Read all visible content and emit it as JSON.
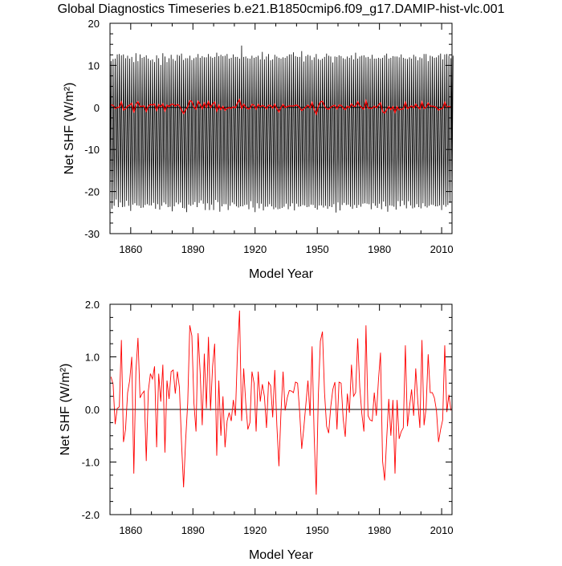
{
  "title": "Global Diagnostics Timeseries b.e21.B1850cmip6.f09_g17.DAMIP-hist-vlc.001",
  "chart_data": [
    {
      "type": "line",
      "xlabel": "Model Year",
      "ylabel": "Net SHF (W/m²)",
      "xlim": [
        1850,
        2015
      ],
      "ylim": [
        -30,
        20
      ],
      "xticks": [
        "1860",
        "1890",
        "1920",
        "1950",
        "1980",
        "2010"
      ],
      "yticks": [
        "20",
        "10",
        "0",
        "-10",
        "-20",
        "-30"
      ],
      "zero_line": true,
      "series": [
        {
          "color": "#000000",
          "style": "monthly",
          "annual_min": [
            -23.9,
            -24.1,
            -23.4,
            -21.9,
            -23.7,
            -22.6,
            -23.7,
            -23.6,
            -22.2,
            -23.4,
            -24.6,
            -23.1,
            -22.8,
            -23.3,
            -23.4,
            -23.9,
            -23.8,
            -23.2,
            -23.0,
            -23.3,
            -23.3,
            -22.7,
            -24.1,
            -23.0,
            -24.3,
            -23.4,
            -22.6,
            -23.0,
            -23.7,
            -23.6,
            -24.7,
            -23.5,
            -22.6,
            -23.0,
            -22.6,
            -23.9,
            -24.0,
            -24.9,
            -23.1,
            -23.4,
            -23.1,
            -22.5,
            -23.7,
            -22.7,
            -22.1,
            -22.9,
            -24.4,
            -22.8,
            -24.4,
            -23.1,
            -24.4,
            -22.0,
            -22.5,
            -24.8,
            -23.5,
            -23.0,
            -23.0,
            -24.4,
            -23.4,
            -22.6,
            -23.0,
            -23.5,
            -23.8,
            -23.5,
            -23.5,
            -23.2,
            -23.1,
            -24.2,
            -22.3,
            -23.8,
            -24.9,
            -22.8,
            -24.0,
            -22.9,
            -24.5,
            -23.6,
            -23.6,
            -23.0,
            -23.5,
            -24.2,
            -23.8,
            -24.2,
            -24.1,
            -23.9,
            -23.6,
            -22.9,
            -24.2,
            -23.5,
            -22.8,
            -24.5,
            -22.9,
            -23.6,
            -23.5,
            -23.2,
            -23.3,
            -23.7,
            -23.6,
            -23.1,
            -23.2,
            -23.9,
            -24.3,
            -23.3,
            -23.3,
            -23.8,
            -23.4,
            -24.1,
            -23.5,
            -23.7,
            -23.0,
            -25.0,
            -22.6,
            -24.5,
            -23.2,
            -22.7,
            -23.2,
            -23.1,
            -23.6,
            -24.1,
            -23.2,
            -23.9,
            -23.2,
            -23.6,
            -22.9,
            -22.8,
            -22.9,
            -23.0,
            -24.2,
            -22.8,
            -23.4,
            -23.9,
            -22.9,
            -24.2,
            -22.4,
            -23.5,
            -24.8,
            -23.3,
            -23.4,
            -23.6,
            -24.3,
            -22.3,
            -23.5,
            -22.2,
            -23.2,
            -24.0,
            -22.3,
            -23.3,
            -24.0,
            -23.8,
            -23.0,
            -23.7,
            -24.0,
            -22.8,
            -23.5,
            -23.8,
            -23.4,
            -23.1,
            -23.2,
            -23.5,
            -23.5,
            -23.3,
            -24.4,
            -23.2,
            -23.6,
            -23.2,
            -22.7,
            -23.1
          ],
          "annual_max": [
            11.0,
            11.5,
            11.6,
            12.6,
            12.7,
            12.4,
            12.6,
            11.7,
            12.3,
            11.6,
            12.0,
            10.8,
            12.9,
            11.0,
            12.6,
            11.8,
            12.0,
            12.4,
            11.6,
            11.2,
            11.4,
            10.8,
            12.4,
            11.7,
            10.1,
            12.9,
            12.1,
            10.8,
            11.7,
            12.5,
            11.5,
            11.1,
            12.5,
            12.3,
            12.8,
            11.3,
            11.7,
            11.7,
            12.3,
            11.3,
            11.7,
            11.9,
            12.7,
            11.8,
            12.2,
            11.9,
            11.9,
            12.7,
            12.1,
            11.8,
            12.0,
            13.0,
            12.2,
            12.5,
            12.2,
            12.3,
            12.7,
            11.6,
            11.8,
            12.6,
            12.0,
            12.0,
            11.6,
            14.7,
            12.0,
            12.1,
            11.7,
            11.6,
            12.3,
            11.8,
            12.0,
            12.3,
            11.4,
            13.2,
            11.4,
            12.1,
            12.7,
            11.2,
            11.4,
            12.5,
            12.1,
            11.8,
            11.6,
            11.9,
            11.8,
            12.2,
            12.6,
            12.6,
            13.1,
            12.2,
            12.0,
            12.0,
            13.4,
            10.9,
            12.2,
            12.5,
            12.3,
            11.3,
            11.9,
            12.7,
            11.5,
            11.3,
            11.6,
            12.0,
            12.8,
            12.3,
            12.1,
            10.7,
            12.1,
            12.0,
            12.4,
            12.2,
            11.7,
            11.5,
            12.1,
            11.8,
            12.4,
            11.4,
            13.0,
            11.6,
            12.1,
            12.3,
            12.4,
            11.9,
            12.0,
            11.6,
            12.5,
            11.6,
            11.6,
            11.8,
            11.6,
            11.8,
            12.4,
            12.8,
            11.6,
            11.8,
            12.2,
            12.1,
            12.1,
            11.9,
            12.6,
            11.8,
            11.6,
            11.5,
            11.9,
            11.6,
            12.5,
            12.1,
            11.2,
            11.9,
            11.7,
            12.7,
            12.7,
            11.0,
            12.3,
            12.1,
            11.8,
            11.9,
            12.4,
            12.8,
            11.4,
            12.6,
            12.7,
            12.3,
            11.7,
            12.3
          ]
        },
        {
          "color": "#ff0000",
          "style": "annual",
          "x": [
            1850,
            1851,
            1852,
            1853,
            1854,
            1855,
            1856,
            1857,
            1858,
            1859,
            1860,
            1861,
            1862,
            1863,
            1864,
            1865,
            1866,
            1867,
            1868,
            1869,
            1870,
            1871,
            1872,
            1873,
            1874,
            1875,
            1876,
            1877,
            1878,
            1879,
            1880,
            1881,
            1882,
            1883,
            1884,
            1885,
            1886,
            1887,
            1888,
            1889,
            1890,
            1891,
            1892,
            1893,
            1894,
            1895,
            1896,
            1897,
            1898,
            1899,
            1900,
            1901,
            1902,
            1903,
            1904,
            1905,
            1906,
            1907,
            1908,
            1909,
            1910,
            1911,
            1912,
            1913,
            1914,
            1915,
            1916,
            1917,
            1918,
            1919,
            1920,
            1921,
            1922,
            1923,
            1924,
            1925,
            1926,
            1927,
            1928,
            1929,
            1930,
            1931,
            1932,
            1933,
            1934,
            1935,
            1936,
            1937,
            1938,
            1939,
            1940,
            1941,
            1942,
            1943,
            1944,
            1945,
            1946,
            1947,
            1948,
            1949,
            1950,
            1951,
            1952,
            1953,
            1954,
            1955,
            1956,
            1957,
            1958,
            1959,
            1960,
            1961,
            1962,
            1963,
            1964,
            1965,
            1966,
            1967,
            1968,
            1969,
            1970,
            1971,
            1972,
            1973,
            1974,
            1975,
            1976,
            1977,
            1978,
            1979,
            1980,
            1981,
            1982,
            1983,
            1984,
            1985,
            1986,
            1987,
            1988,
            1989,
            1990,
            1991,
            1992,
            1993,
            1994,
            1995,
            1996,
            1997,
            1998,
            1999,
            2000,
            2001,
            2002,
            2003,
            2004,
            2005,
            2006,
            2007,
            2008,
            2009,
            2010,
            2011,
            2012,
            2013,
            2014
          ],
          "y": [
            0.62,
            0.48,
            -0.28,
            0.02,
            0.05,
            1.32,
            -0.62,
            -0.38,
            0.32,
            0.55,
            1.0,
            -1.22,
            0.72,
            1.36,
            0.22,
            0.3,
            0.35,
            -0.98,
            0.35,
            0.68,
            0.58,
            0.82,
            -0.72,
            0.68,
            0.15,
            0.85,
            -0.82,
            0.55,
            0.2,
            0.72,
            0.75,
            0.3,
            0.72,
            0.42,
            -0.62,
            -1.48,
            -0.58,
            0.12,
            1.6,
            1.4,
            0.12,
            -0.42,
            1.45,
            0.7,
            -0.3,
            1.06,
            0.02,
            1.38,
            -0.02,
            0.82,
            1.25,
            -0.88,
            0.55,
            -0.5,
            0.25,
            -0.72,
            -0.22,
            -0.06,
            -0.22,
            0.18,
            -0.12,
            1.1,
            1.88,
            -0.22,
            0.78,
            0.12,
            -0.38,
            -0.25,
            0.72,
            0.5,
            -0.42,
            0.72,
            0.15,
            0.48,
            0.25,
            -0.35,
            0.52,
            0.45,
            -0.15,
            0.75,
            -0.3,
            -1.08,
            -0.05,
            0.72,
            -0.02,
            0.22,
            0.36,
            0.35,
            0.32,
            0.52,
            0.5,
            -0.05,
            -0.75,
            -0.35,
            0.1,
            0.55,
            -0.12,
            1.2,
            -0.5,
            -1.62,
            0.25,
            1.3,
            1.48,
            0.32,
            -0.32,
            -0.45,
            0.05,
            0.38,
            0.52,
            -0.38,
            0.52,
            0.5,
            -0.18,
            -0.52,
            0.3,
            -0.06,
            0.85,
            0.25,
            0.32,
            1.35,
            0.42,
            -0.08,
            -0.42,
            1.6,
            -0.12,
            -0.2,
            -0.22,
            0.32,
            -0.12,
            0.55,
            1.08,
            -0.98,
            -1.35,
            -0.55,
            0.2,
            -0.5,
            0.18,
            -1.22,
            0.18,
            -0.56,
            -0.42,
            -0.35,
            1.22,
            -0.32,
            0.05,
            0.38,
            -0.12,
            0.78,
            0.15,
            -0.35,
            1.32,
            -0.3,
            0.02,
            1.05,
            0.32,
            0.32,
            0.22,
            -0.02,
            -0.62,
            -0.38,
            -0.2,
            1.22,
            -0.05,
            0.28,
            -0.02
          ]
        }
      ]
    },
    {
      "type": "line",
      "xlabel": "Model Year",
      "ylabel": "Net SHF (W/m²)",
      "xlim": [
        1850,
        2015
      ],
      "ylim": [
        -2.0,
        2.0
      ],
      "xticks": [
        "1860",
        "1890",
        "1920",
        "1950",
        "1980",
        "2010"
      ],
      "yticks": [
        "2.0",
        "1.0",
        "0.0",
        "-1.0",
        "-2.0"
      ],
      "zero_line": true,
      "series": [
        {
          "color": "#ff0000",
          "style": "annual",
          "x": [
            1850,
            1851,
            1852,
            1853,
            1854,
            1855,
            1856,
            1857,
            1858,
            1859,
            1860,
            1861,
            1862,
            1863,
            1864,
            1865,
            1866,
            1867,
            1868,
            1869,
            1870,
            1871,
            1872,
            1873,
            1874,
            1875,
            1876,
            1877,
            1878,
            1879,
            1880,
            1881,
            1882,
            1883,
            1884,
            1885,
            1886,
            1887,
            1888,
            1889,
            1890,
            1891,
            1892,
            1893,
            1894,
            1895,
            1896,
            1897,
            1898,
            1899,
            1900,
            1901,
            1902,
            1903,
            1904,
            1905,
            1906,
            1907,
            1908,
            1909,
            1910,
            1911,
            1912,
            1913,
            1914,
            1915,
            1916,
            1917,
            1918,
            1919,
            1920,
            1921,
            1922,
            1923,
            1924,
            1925,
            1926,
            1927,
            1928,
            1929,
            1930,
            1931,
            1932,
            1933,
            1934,
            1935,
            1936,
            1937,
            1938,
            1939,
            1940,
            1941,
            1942,
            1943,
            1944,
            1945,
            1946,
            1947,
            1948,
            1949,
            1950,
            1951,
            1952,
            1953,
            1954,
            1955,
            1956,
            1957,
            1958,
            1959,
            1960,
            1961,
            1962,
            1963,
            1964,
            1965,
            1966,
            1967,
            1968,
            1969,
            1970,
            1971,
            1972,
            1973,
            1974,
            1975,
            1976,
            1977,
            1978,
            1979,
            1980,
            1981,
            1982,
            1983,
            1984,
            1985,
            1986,
            1987,
            1988,
            1989,
            1990,
            1991,
            1992,
            1993,
            1994,
            1995,
            1996,
            1997,
            1998,
            1999,
            2000,
            2001,
            2002,
            2003,
            2004,
            2005,
            2006,
            2007,
            2008,
            2009,
            2010,
            2011,
            2012,
            2013,
            2014
          ],
          "y": [
            0.62,
            0.48,
            -0.28,
            0.02,
            0.05,
            1.32,
            -0.62,
            -0.38,
            0.32,
            0.55,
            1.0,
            -1.22,
            0.72,
            1.36,
            0.22,
            0.3,
            0.35,
            -0.98,
            0.35,
            0.68,
            0.58,
            0.82,
            -0.72,
            0.68,
            0.15,
            0.85,
            -0.82,
            0.55,
            0.2,
            0.72,
            0.75,
            0.3,
            0.72,
            0.42,
            -0.62,
            -1.48,
            -0.58,
            0.12,
            1.6,
            1.4,
            0.12,
            -0.42,
            1.45,
            0.7,
            -0.3,
            1.06,
            0.02,
            1.38,
            -0.02,
            0.82,
            1.25,
            -0.88,
            0.55,
            -0.5,
            0.25,
            -0.72,
            -0.22,
            -0.06,
            -0.22,
            0.18,
            -0.12,
            1.1,
            1.88,
            -0.22,
            0.78,
            0.12,
            -0.38,
            -0.25,
            0.72,
            0.5,
            -0.42,
            0.72,
            0.15,
            0.48,
            0.25,
            -0.35,
            0.52,
            0.45,
            -0.15,
            0.75,
            -0.3,
            -1.08,
            -0.05,
            0.72,
            -0.02,
            0.22,
            0.36,
            0.35,
            0.32,
            0.52,
            0.5,
            -0.05,
            -0.75,
            -0.35,
            0.1,
            0.55,
            -0.12,
            1.2,
            -0.5,
            -1.62,
            0.25,
            1.3,
            1.48,
            0.32,
            -0.32,
            -0.45,
            0.05,
            0.38,
            0.52,
            -0.38,
            0.52,
            0.5,
            -0.18,
            -0.52,
            0.3,
            -0.06,
            0.85,
            0.25,
            0.32,
            1.35,
            0.42,
            -0.08,
            -0.42,
            1.6,
            -0.12,
            -0.2,
            -0.22,
            0.32,
            -0.12,
            0.55,
            1.08,
            -0.98,
            -1.35,
            -0.55,
            0.2,
            -0.5,
            0.18,
            -1.22,
            0.18,
            -0.56,
            -0.42,
            -0.35,
            1.22,
            -0.32,
            0.05,
            0.38,
            -0.12,
            0.78,
            0.15,
            -0.35,
            1.32,
            -0.3,
            0.02,
            1.05,
            0.32,
            0.32,
            0.22,
            -0.02,
            -0.62,
            -0.38,
            -0.2,
            1.22,
            -0.05,
            0.28,
            -0.02
          ]
        }
      ]
    }
  ]
}
